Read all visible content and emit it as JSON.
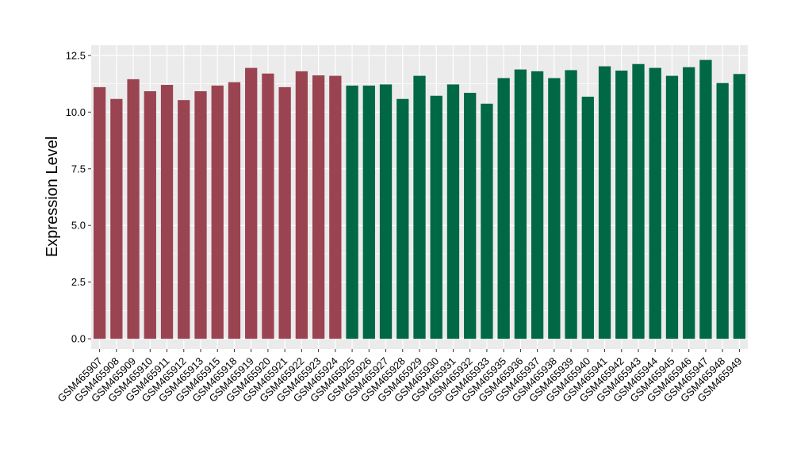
{
  "chart_data": {
    "type": "bar",
    "ylabel": "Expression Level",
    "xlabel": "",
    "title": "",
    "ylim": [
      -0.45,
      12.95
    ],
    "yticks": [
      0.0,
      2.5,
      5.0,
      7.5,
      10.0,
      12.5
    ],
    "ytick_labels": [
      "0.0",
      "2.5",
      "5.0",
      "7.5",
      "10.0",
      "12.5"
    ],
    "grid": true,
    "legend": "none",
    "categories": [
      "GSM465907",
      "GSM465908",
      "GSM465909",
      "GSM465910",
      "GSM465911",
      "GSM465912",
      "GSM465913",
      "GSM465915",
      "GSM465918",
      "GSM465919",
      "GSM465920",
      "GSM465921",
      "GSM465922",
      "GSM465923",
      "GSM465924",
      "GSM465925",
      "GSM465926",
      "GSM465927",
      "GSM465928",
      "GSM465929",
      "GSM465930",
      "GSM465931",
      "GSM465932",
      "GSM465933",
      "GSM465935",
      "GSM465936",
      "GSM465937",
      "GSM465938",
      "GSM465939",
      "GSM465940",
      "GSM465941",
      "GSM465942",
      "GSM465943",
      "GSM465944",
      "GSM465945",
      "GSM465946",
      "GSM465947",
      "GSM465948",
      "GSM465949"
    ],
    "values": [
      11.1,
      10.58,
      11.45,
      10.92,
      11.2,
      10.53,
      10.92,
      11.17,
      11.32,
      11.95,
      11.7,
      11.1,
      11.8,
      11.62,
      11.6,
      11.17,
      11.17,
      11.22,
      10.58,
      11.6,
      10.72,
      11.22,
      10.85,
      10.37,
      11.5,
      11.88,
      11.8,
      11.5,
      11.85,
      10.68,
      12.02,
      11.83,
      12.12,
      11.95,
      11.6,
      11.98,
      12.3,
      11.28,
      11.68
    ],
    "groups": [
      0,
      0,
      0,
      0,
      0,
      0,
      0,
      0,
      0,
      0,
      0,
      0,
      0,
      0,
      0,
      1,
      1,
      1,
      1,
      1,
      1,
      1,
      1,
      1,
      1,
      1,
      1,
      1,
      1,
      1,
      1,
      1,
      1,
      1,
      1,
      1,
      1,
      1,
      1
    ],
    "group_colors": [
      "#9b4451",
      "#006845"
    ],
    "panel_background": "#ebebeb",
    "grid_color": "#ffffff"
  }
}
